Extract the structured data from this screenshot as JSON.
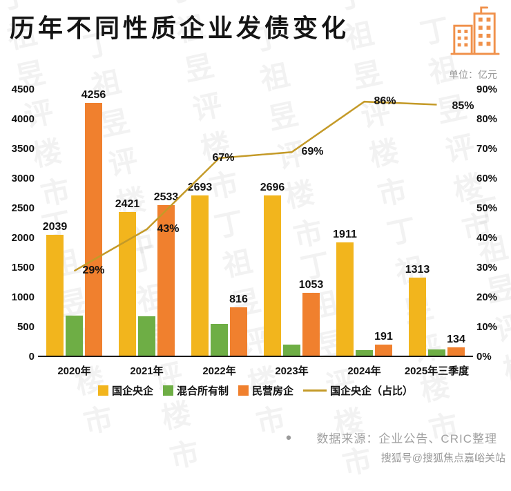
{
  "header": {
    "title": "历年不同性质企业发债变化",
    "unit_label": "单位：亿元"
  },
  "chart_data": {
    "type": "bar",
    "title": "历年不同性质企业发债变化",
    "unit": "亿元",
    "categories": [
      "2020年",
      "2021年",
      "2022年",
      "2023年",
      "2024年",
      "2025年三季度"
    ],
    "series": [
      {
        "name": "国企央企",
        "color": "#F2B51D",
        "values": [
          2039,
          2421,
          2693,
          2696,
          1911,
          1313
        ],
        "labels": [
          "2039",
          "2421",
          "2693",
          "2696",
          "1911",
          "1313"
        ]
      },
      {
        "name": "混合所有制",
        "color": "#6EAE45",
        "values": [
          680,
          660,
          530,
          190,
          95,
          110
        ],
        "labels": [
          "",
          "",
          "",
          "",
          "",
          ""
        ]
      },
      {
        "name": "民营房企",
        "color": "#F0802E",
        "values": [
          4256,
          2533,
          816,
          1053,
          191,
          134
        ],
        "labels": [
          "4256",
          "2533",
          "816",
          "1053",
          "191",
          "134"
        ]
      }
    ],
    "line": {
      "name": "国企央企（占比）",
      "color": "#C49A28",
      "axis": "right",
      "values": [
        29,
        43,
        67,
        69,
        86,
        85
      ],
      "labels": [
        "29%",
        "43%",
        "67%",
        "69%",
        "86%",
        "85%"
      ]
    },
    "y_left": {
      "min": 0,
      "max": 4500,
      "step": 500,
      "ticks": [
        "4500",
        "4000",
        "3500",
        "3000",
        "2500",
        "2000",
        "1500",
        "1000",
        "500",
        "0"
      ]
    },
    "y_right": {
      "min": 0,
      "max": 90,
      "step": 10,
      "ticks": [
        "90%",
        "80%",
        "70%",
        "60%",
        "50%",
        "40%",
        "30%",
        "20%",
        "10%",
        "0%"
      ]
    },
    "legend_position": "bottom",
    "grid": false
  },
  "footer": {
    "bullet": "●",
    "source": "数据来源：企业公告、CRIC整理"
  },
  "watermark": {
    "text": "丁祖昱评楼市",
    "badge": "搜狐号@搜狐焦点嘉峪关站"
  }
}
